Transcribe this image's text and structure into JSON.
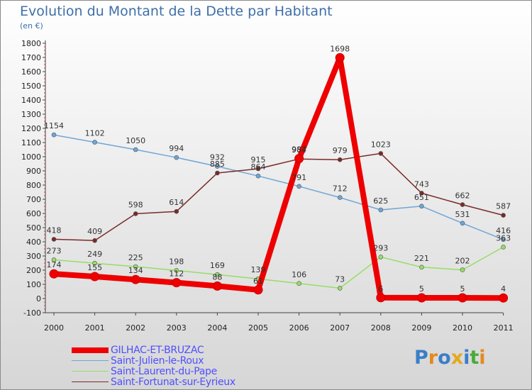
{
  "title": "Evolution du Montant de la Dette par Habitant",
  "unit_label": "(en €)",
  "logo_text": "Proxiti",
  "logo_colors": [
    "#3a7ec8",
    "#e58a1e",
    "#3a7ec8",
    "#e5a81e",
    "#3a7ec8",
    "#4aaa3a",
    "#e58a1e"
  ],
  "chart_data": {
    "type": "line",
    "x": [
      "2000",
      "2001",
      "2002",
      "2003",
      "2004",
      "2005",
      "2006",
      "2007",
      "2008",
      "2009",
      "2010",
      "2011"
    ],
    "ylim": [
      -100,
      1800
    ],
    "yticks": [
      "-100",
      "0",
      "100",
      "200",
      "300",
      "400",
      "500",
      "600",
      "700",
      "800",
      "900",
      "1000",
      "1100",
      "1200",
      "1300",
      "1400",
      "1500",
      "1600",
      "1700",
      "1800"
    ],
    "grid": false,
    "legend_position": "bottom-left",
    "series": [
      {
        "name": "GILHAC-ET-BRUZAC",
        "color": "#ee0000",
        "values": [
          174,
          155,
          134,
          112,
          88,
          61,
          987,
          1698,
          6,
          5,
          5,
          4
        ],
        "labels": [
          "174",
          "155",
          "134",
          "112",
          "88",
          "61",
          "987",
          "1698",
          "6",
          "5",
          "5",
          "4"
        ]
      },
      {
        "name": "Saint-Julien-le-Roux",
        "color": "#6fa6d6",
        "values": [
          1154,
          1102,
          1050,
          994,
          932,
          864,
          791,
          712,
          625,
          651,
          531,
          416
        ],
        "labels": [
          "1154",
          "1102",
          "1050",
          "994",
          "932",
          "864",
          "791",
          "712",
          "625",
          "651",
          "531",
          "416"
        ]
      },
      {
        "name": "Saint-Laurent-du-Pape",
        "color": "#96dd66",
        "values": [
          273,
          249,
          225,
          198,
          169,
          139,
          106,
          73,
          293,
          221,
          202,
          363
        ],
        "labels": [
          "273",
          "249",
          "225",
          "198",
          "169",
          "139",
          "106",
          "73",
          "293",
          "221",
          "202",
          "363"
        ]
      },
      {
        "name": "Saint-Fortunat-sur-Eyrieux",
        "color": "#7a2a2a",
        "values": [
          418,
          409,
          598,
          614,
          885,
          915,
          984,
          979,
          1023,
          743,
          662,
          587
        ],
        "labels": [
          "418",
          "409",
          "598",
          "614",
          "885",
          "915",
          "984",
          "979",
          "1023",
          "743",
          "662",
          "587"
        ]
      }
    ]
  }
}
